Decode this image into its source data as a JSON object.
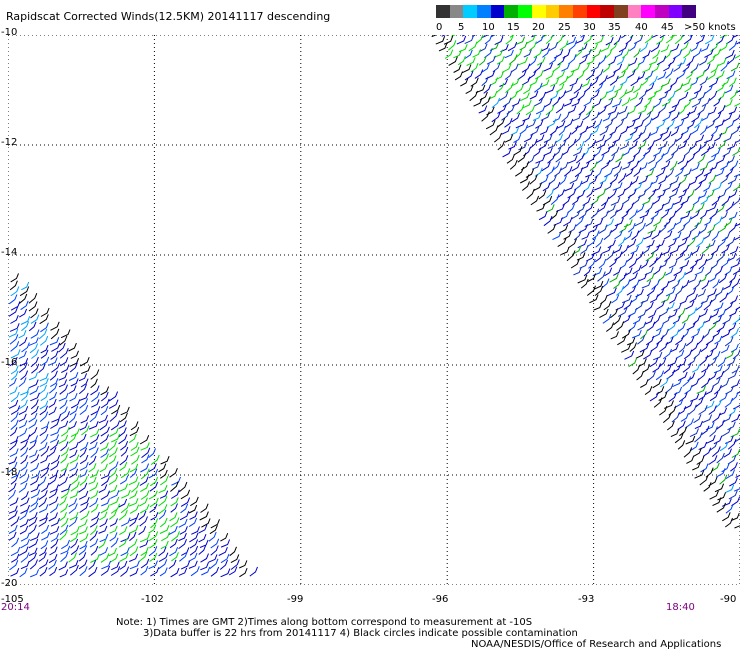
{
  "title": "Rapidscat Corrected Winds(12.5KM) 20141117 descending",
  "legend": {
    "colors": [
      "#333333",
      "#888888",
      "#00ccff",
      "#0080ff",
      "#0000cc",
      "#00b000",
      "#00ff00",
      "#ffff00",
      "#ffcc00",
      "#ff8000",
      "#ff4000",
      "#ff0000",
      "#c00000",
      "#804020",
      "#ff80c0",
      "#ff00ff",
      "#c000c0",
      "#8000ff",
      "#400080"
    ],
    "labels": [
      "0",
      "5",
      "10",
      "15",
      "20",
      "25",
      "30",
      "35",
      "40",
      "45",
      ">50 knots"
    ]
  },
  "axes": {
    "lat_labels": [
      "-10",
      "-12",
      "-14",
      "-16",
      "-18",
      "-20"
    ],
    "lon_labels": [
      "-105",
      "-102",
      "-99",
      "-96",
      "-93",
      "-90"
    ]
  },
  "times": {
    "left": "20:14",
    "right": "18:40"
  },
  "notes": {
    "line1": "Note: 1) Times are GMT 2)Times along bottom correspond to measurement at -10S",
    "line2": "3)Data buffer is 22 hrs from 20141117 4) Black circles indicate possible contamination",
    "line3": "NOAA/NESDIS/Office of Research and Applications"
  },
  "map_data": {
    "lat_range": [
      -20,
      -10
    ],
    "lon_range": [
      -105,
      -90
    ],
    "swaths": [
      {
        "name": "east",
        "wind_palette": [
          "#0000cc",
          "#1030c0",
          "#0040ff",
          "#00a0ff",
          "#00b000",
          "#00dd00",
          "#000000"
        ]
      },
      {
        "name": "west",
        "wind_palette": [
          "#0000cc",
          "#0040ff",
          "#00a0ff",
          "#00b000",
          "#00dd00",
          "#000000"
        ]
      }
    ]
  }
}
